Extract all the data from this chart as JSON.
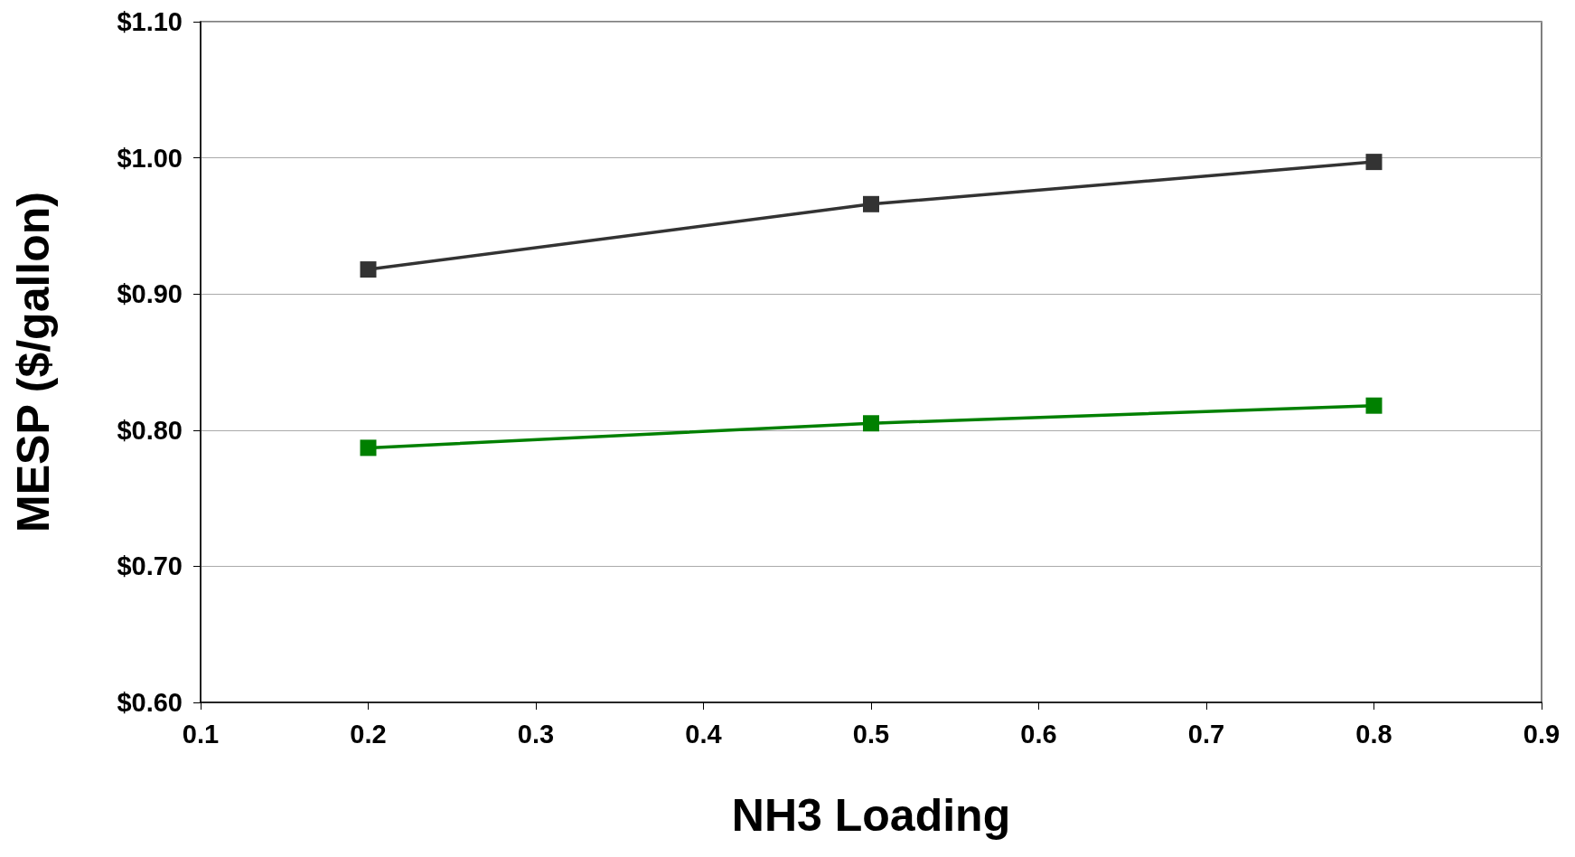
{
  "chart_data": {
    "type": "line",
    "xlabel": "NH3 Loading",
    "ylabel": "MESP ($/gallon)",
    "x": [
      0.2,
      0.5,
      0.8
    ],
    "series": [
      {
        "color": "#333333",
        "values": [
          0.918,
          0.966,
          0.997
        ]
      },
      {
        "color": "#008000",
        "values": [
          0.787,
          0.805,
          0.818
        ]
      }
    ],
    "xlim": [
      0.1,
      0.9
    ],
    "xticks": [
      0.1,
      0.2,
      0.3,
      0.4,
      0.5,
      0.6,
      0.7,
      0.8,
      0.9
    ],
    "ylim": [
      0.6,
      1.1
    ],
    "yticks": [
      {
        "value": 0.6,
        "label": "$0.60"
      },
      {
        "value": 0.7,
        "label": "$0.70"
      },
      {
        "value": 0.8,
        "label": "$0.80"
      },
      {
        "value": 0.9,
        "label": "$0.90"
      },
      {
        "value": 1.0,
        "label": "$1.00"
      },
      {
        "value": 1.1,
        "label": "$1.10"
      }
    ],
    "grid": "y",
    "marker": "square",
    "line_style": "solid"
  }
}
